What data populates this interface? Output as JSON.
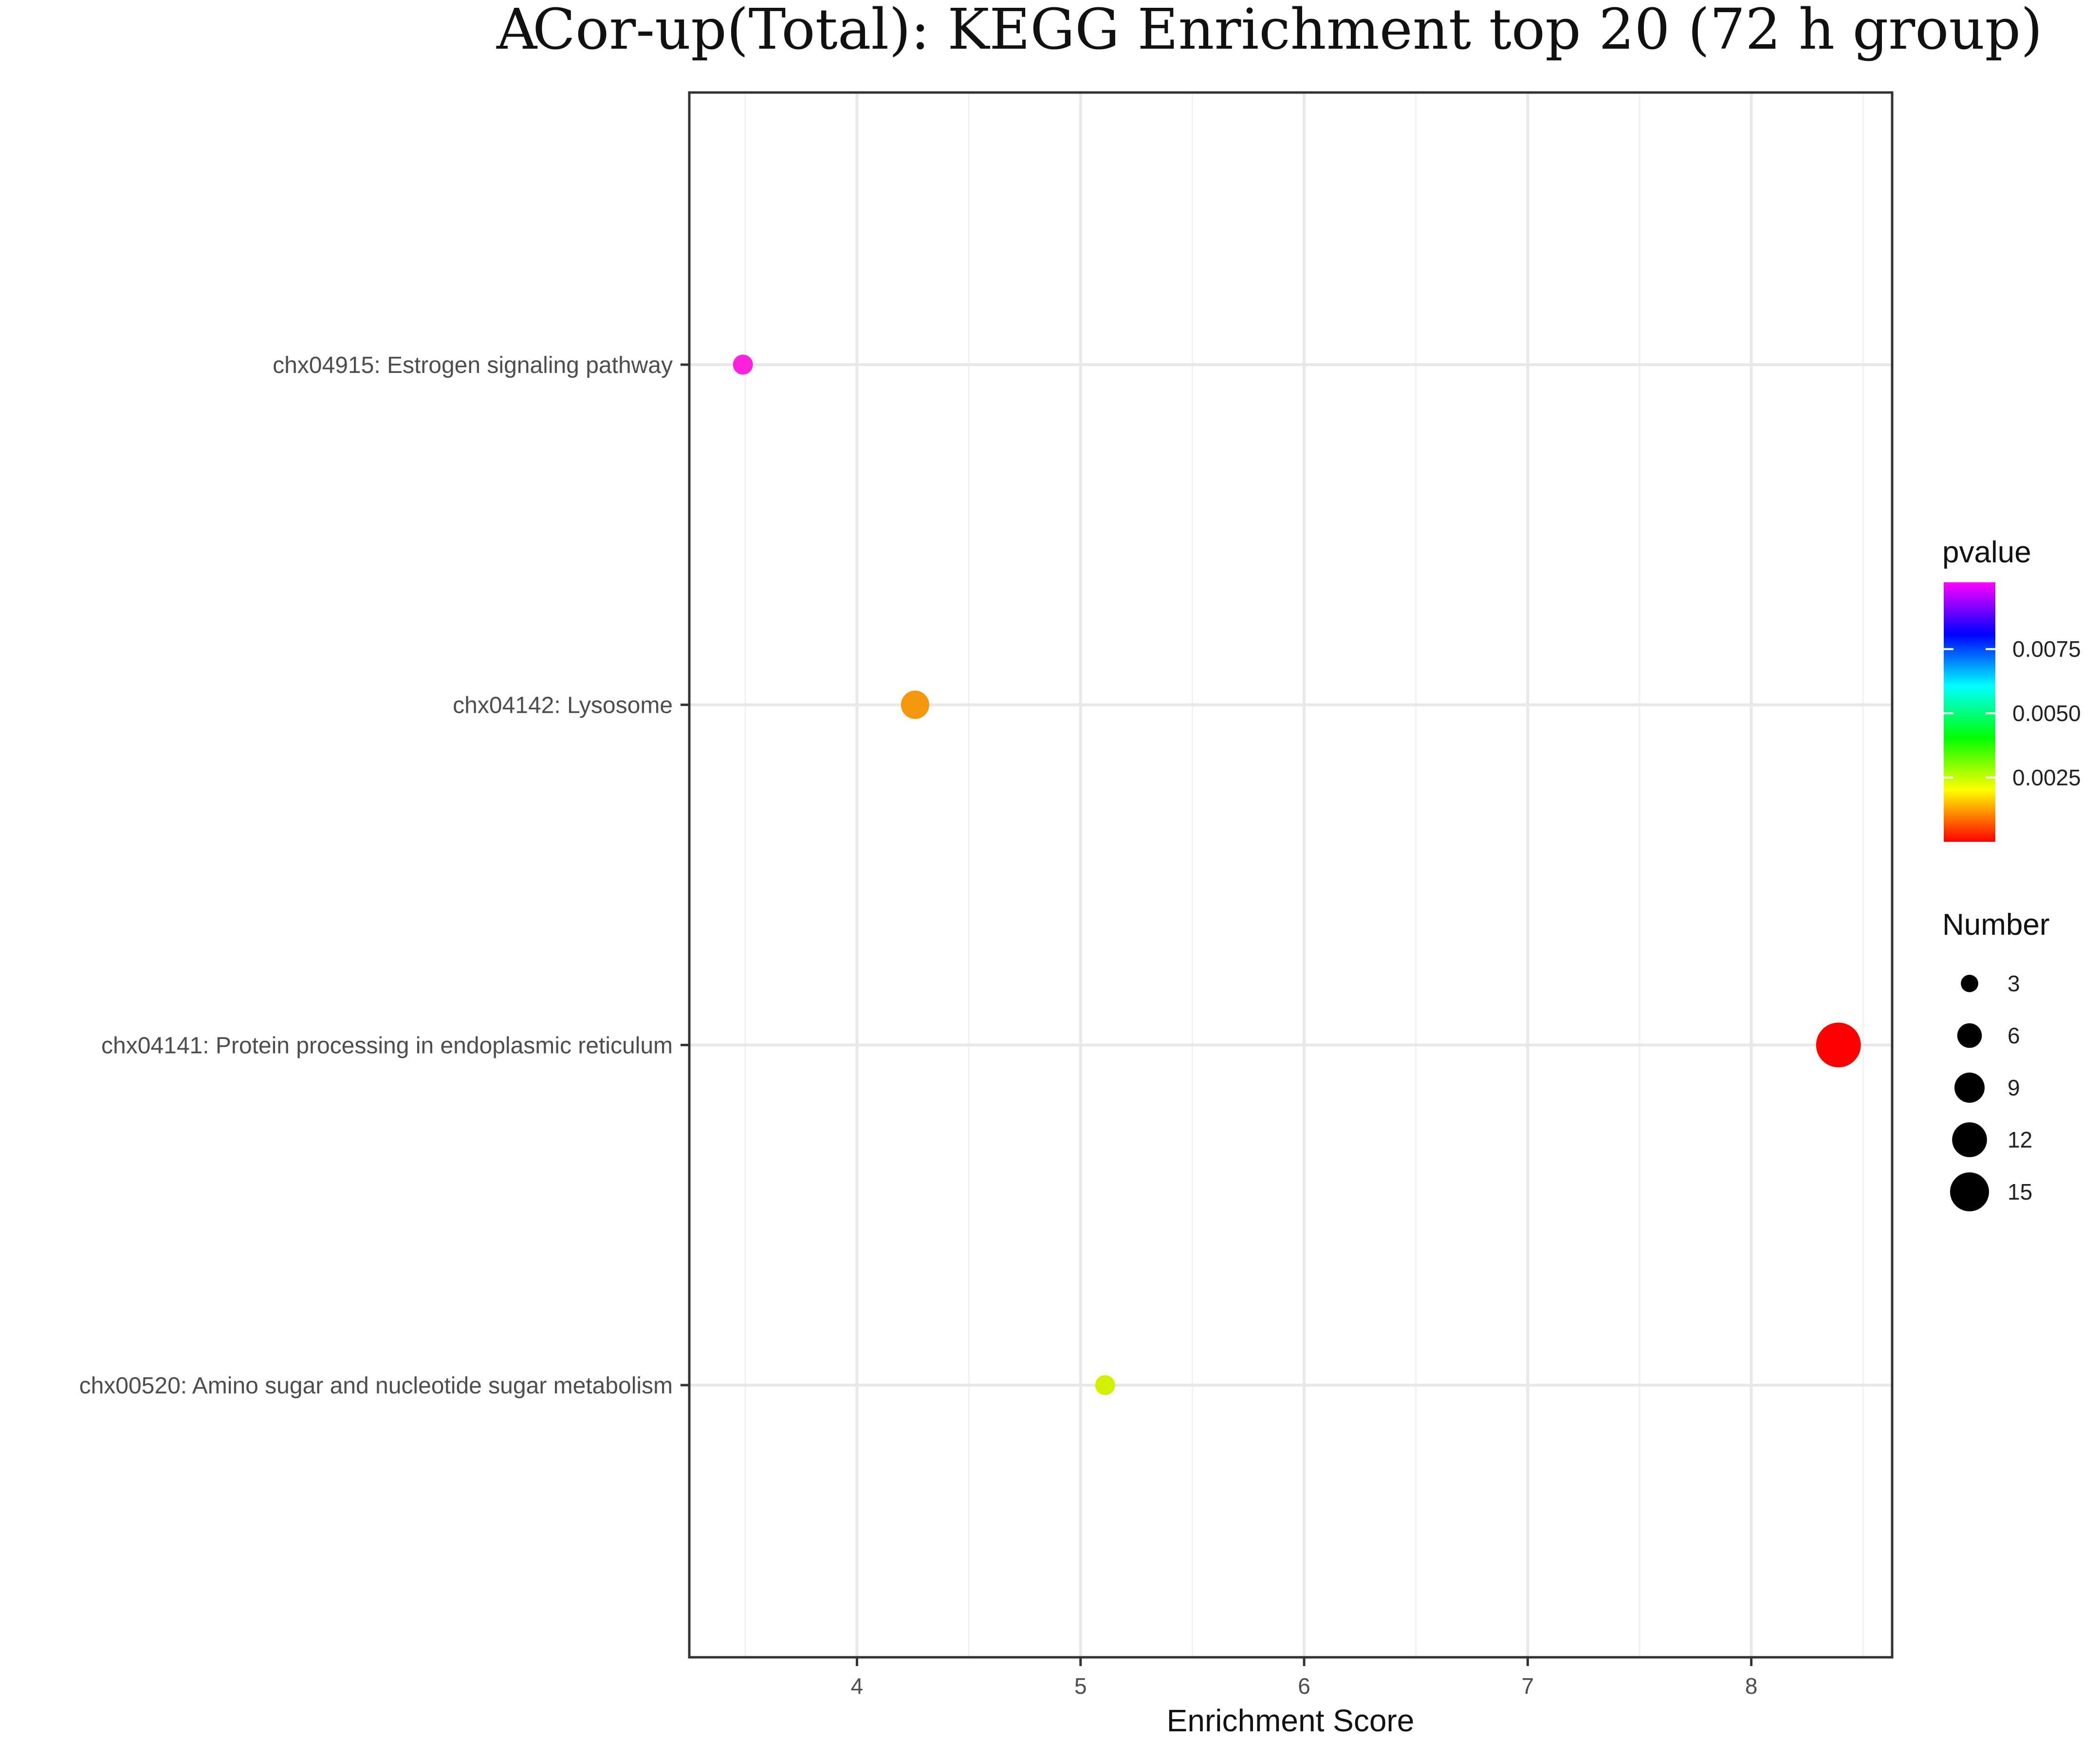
{
  "panel_label": "A",
  "chart_data": {
    "type": "scatter",
    "title": "Cor-up(Total): KEGG Enrichment top 20 (72 h group)",
    "xlabel": "Enrichment Score",
    "ylabel": "",
    "xlim": [
      3.25,
      8.63
    ],
    "xticks": [
      4,
      5,
      6,
      7,
      8
    ],
    "grid": true,
    "categories": [
      "chx04915: Estrogen signaling pathway",
      "chx04142: Lysosome",
      "chx04141: Protein processing in endoplasmic reticulum",
      "chx00520: Amino sugar and nucleotide sugar metabolism"
    ],
    "points": [
      {
        "category": "chx04915: Estrogen signaling pathway",
        "x": 3.49,
        "number": 3,
        "pvalue": 0.0097,
        "color": "#ff22dd"
      },
      {
        "category": "chx04142: Lysosome",
        "x": 4.26,
        "number": 6,
        "pvalue": 0.0012,
        "color": "#f5960f"
      },
      {
        "category": "chx04141: Protein processing in endoplasmic reticulum",
        "x": 8.39,
        "number": 15,
        "pvalue": 0.0001,
        "color": "#ff0000"
      },
      {
        "category": "chx00520: Amino sugar and nucleotide sugar metabolism",
        "x": 5.11,
        "number": 3,
        "pvalue": 0.0022,
        "color": "#d4f000"
      }
    ],
    "legend_placement": "right",
    "color_legend": {
      "title": "pvalue",
      "min": 0.0,
      "max": 0.0101,
      "ticks": [
        0.0025,
        0.005,
        0.0075
      ],
      "tick_labels": [
        "0.0025",
        "0.0050",
        "0.0075"
      ],
      "colors": [
        "#ff0000",
        "#ffff00",
        "#00ff00",
        "#00ffff",
        "#0000ff",
        "#ff00ff"
      ]
    },
    "size_legend": {
      "title": "Number",
      "values": [
        3,
        6,
        9,
        12,
        15
      ],
      "labels": [
        "3",
        "6",
        "9",
        "12",
        "15"
      ],
      "color": "#000000"
    }
  }
}
